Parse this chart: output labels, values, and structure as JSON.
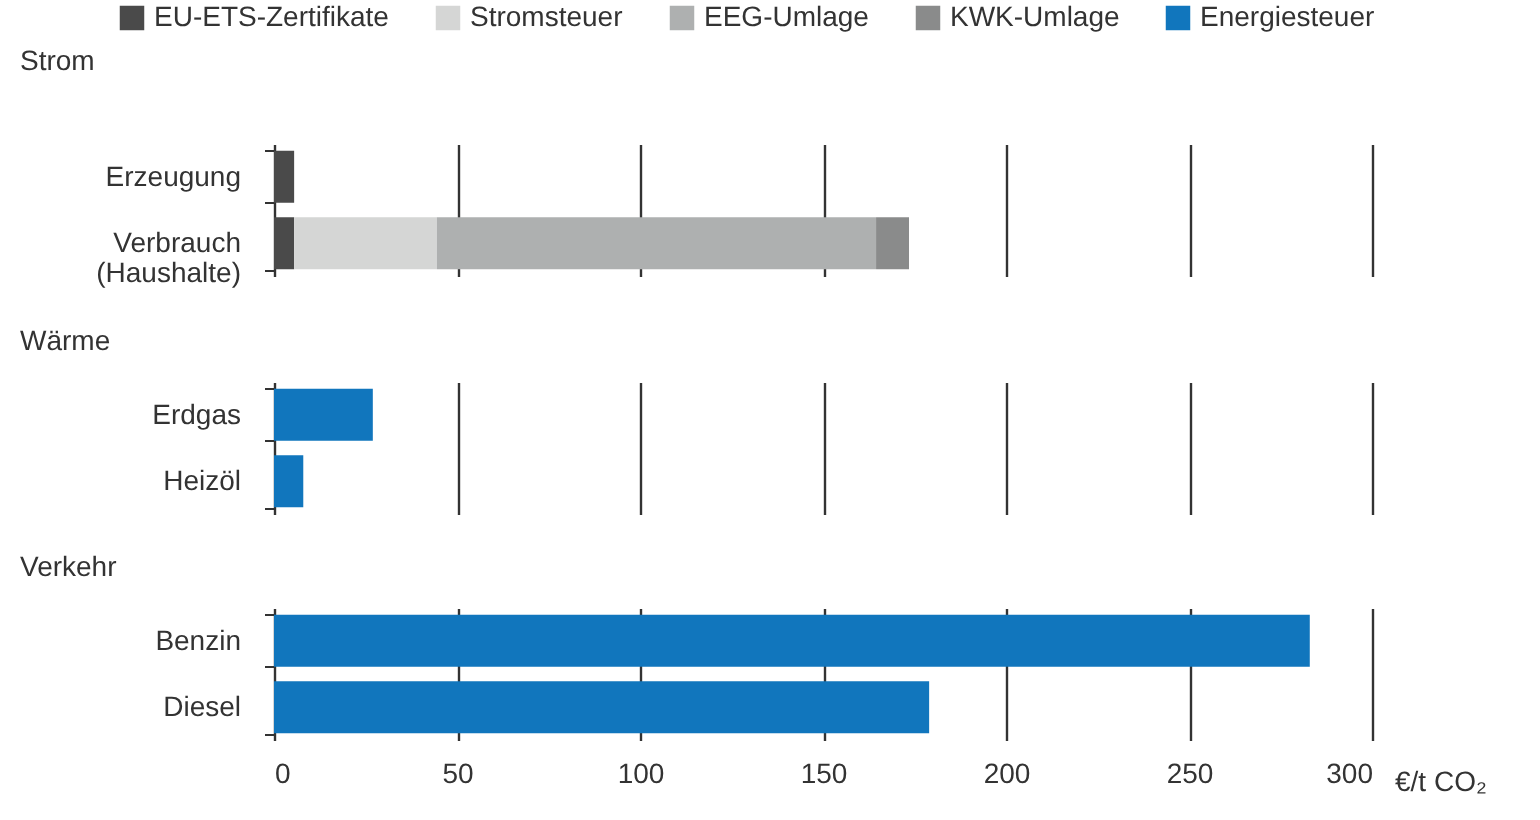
{
  "chart_data": [
    {
      "type": "bar",
      "orientation": "horizontal",
      "stacked": true,
      "title": "Strom",
      "categories": [
        "Erzeugung",
        "Verbrauch\n(Haushalte)"
      ],
      "series": [
        {
          "name": "EU-ETS-Zertifikate",
          "color": "#4a4a4a",
          "values": [
            5.5,
            5.5
          ]
        },
        {
          "name": "Stromsteuer",
          "color": "#d5d6d5",
          "values": [
            0,
            39
          ]
        },
        {
          "name": "EEG-Umlage",
          "color": "#aeb0b0",
          "values": [
            0,
            120
          ]
        },
        {
          "name": "KWK-Umlage",
          "color": "#8a8b8b",
          "values": [
            0,
            9
          ]
        },
        {
          "name": "Energiesteuer",
          "color": "#1176bd",
          "values": [
            0,
            0
          ]
        }
      ],
      "xlim": [
        0,
        300
      ],
      "xticks": [
        0,
        50,
        100,
        150,
        200,
        250,
        300
      ],
      "grid": "x",
      "legend": "top",
      "tick_labels": "y"
    },
    {
      "type": "bar",
      "orientation": "horizontal",
      "stacked": true,
      "title": "Wärme",
      "categories": [
        "Erdgas",
        "Heizöl"
      ],
      "series": [
        {
          "color": "#1176bd",
          "values": [
            27,
            8
          ]
        }
      ],
      "xlim": [
        0,
        300
      ],
      "xticks": [
        0,
        50,
        100,
        150,
        200,
        250,
        300
      ],
      "grid": "x",
      "tick_labels": "y"
    },
    {
      "type": "bar",
      "orientation": "horizontal",
      "stacked": true,
      "title": "Verkehr",
      "categories": [
        "Benzin",
        "Diesel"
      ],
      "series": [
        {
          "color": "#1176bd",
          "values": [
            283,
            179
          ]
        }
      ],
      "xlim": [
        0,
        300
      ],
      "xticks": [
        0,
        50,
        100,
        150,
        200,
        250,
        300
      ],
      "grid": "x",
      "xlabel": "€/t CO₂"
    }
  ]
}
